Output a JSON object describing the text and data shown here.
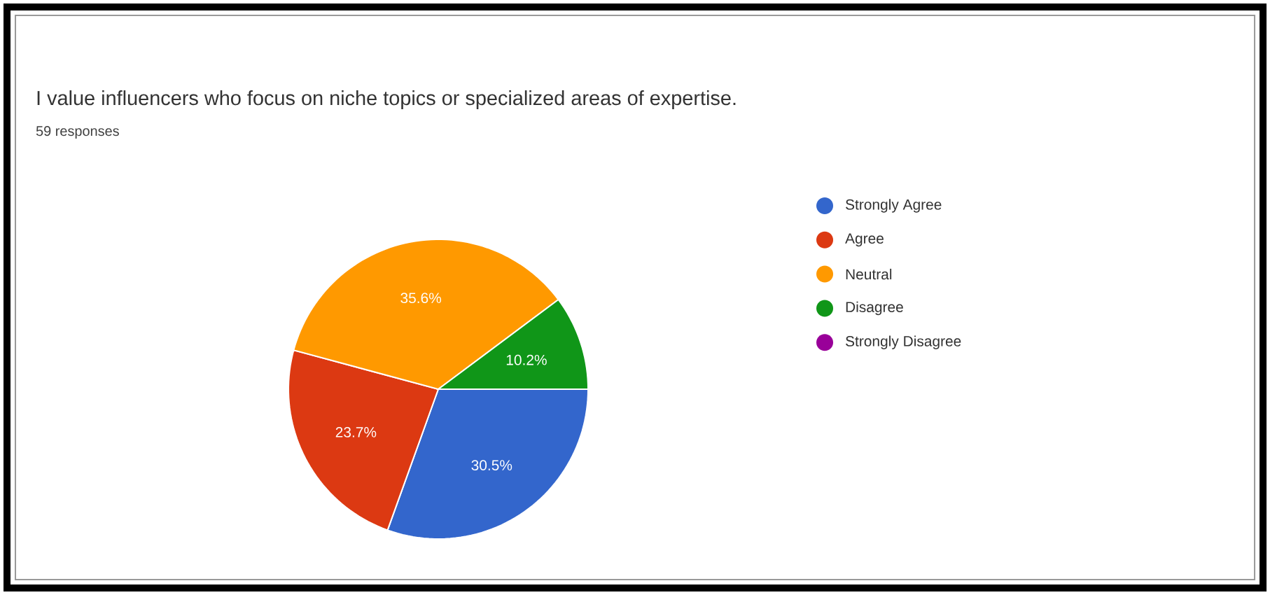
{
  "chart_data": {
    "type": "pie",
    "title": "I value influencers who focus on niche topics or specialized areas of expertise.",
    "subtitle": "59 responses",
    "categories": [
      "Strongly Agree",
      "Agree",
      "Neutral",
      "Disagree",
      "Strongly Disagree"
    ],
    "values": [
      30.5,
      23.7,
      35.6,
      10.2,
      0
    ],
    "colors": [
      "#3366cc",
      "#dc3912",
      "#ff9900",
      "#109618",
      "#990099"
    ],
    "value_labels": [
      "30.5%",
      "23.7%",
      "35.6%",
      "10.2%",
      null
    ],
    "legend": "right"
  }
}
